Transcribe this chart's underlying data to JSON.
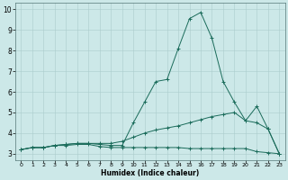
{
  "title": "",
  "xlabel": "Humidex (Indice chaleur)",
  "ylabel": "",
  "bg_color": "#cce8e8",
  "grid_color": "#aacccc",
  "line_color": "#1a6b5a",
  "xlim": [
    -0.5,
    23.5
  ],
  "ylim": [
    2.7,
    10.3
  ],
  "xticks": [
    0,
    1,
    2,
    3,
    4,
    5,
    6,
    7,
    8,
    9,
    10,
    11,
    12,
    13,
    14,
    15,
    16,
    17,
    18,
    19,
    20,
    21,
    22,
    23
  ],
  "yticks": [
    3,
    4,
    5,
    6,
    7,
    8,
    9,
    10
  ],
  "line1_x": [
    0,
    1,
    2,
    3,
    4,
    5,
    6,
    7,
    8,
    9,
    10,
    11,
    12,
    13,
    14,
    15,
    16,
    17,
    18,
    19,
    20,
    21,
    22,
    23
  ],
  "line1_y": [
    3.2,
    3.3,
    3.3,
    3.4,
    3.4,
    3.45,
    3.45,
    3.35,
    3.3,
    3.3,
    3.3,
    3.3,
    3.3,
    3.3,
    3.3,
    3.25,
    3.25,
    3.25,
    3.25,
    3.25,
    3.25,
    3.1,
    3.05,
    3.0
  ],
  "line2_x": [
    0,
    1,
    2,
    3,
    4,
    5,
    6,
    7,
    8,
    9,
    10,
    11,
    12,
    13,
    14,
    15,
    16,
    17,
    18,
    19,
    20,
    21,
    22,
    23
  ],
  "line2_y": [
    3.2,
    3.3,
    3.3,
    3.4,
    3.45,
    3.5,
    3.5,
    3.5,
    3.5,
    3.6,
    3.8,
    4.0,
    4.15,
    4.25,
    4.35,
    4.5,
    4.65,
    4.8,
    4.9,
    5.0,
    4.6,
    4.5,
    4.2,
    3.0
  ],
  "line3_x": [
    0,
    1,
    2,
    3,
    4,
    5,
    6,
    7,
    8,
    9,
    10,
    11,
    12,
    13,
    14,
    15,
    16,
    17,
    18,
    19,
    20,
    21,
    22,
    23
  ],
  "line3_y": [
    3.2,
    3.3,
    3.3,
    3.4,
    3.45,
    3.5,
    3.5,
    3.45,
    3.4,
    3.4,
    4.5,
    5.5,
    6.5,
    6.6,
    8.1,
    9.55,
    9.85,
    8.6,
    6.5,
    5.5,
    4.6,
    5.3,
    4.2,
    3.0
  ]
}
